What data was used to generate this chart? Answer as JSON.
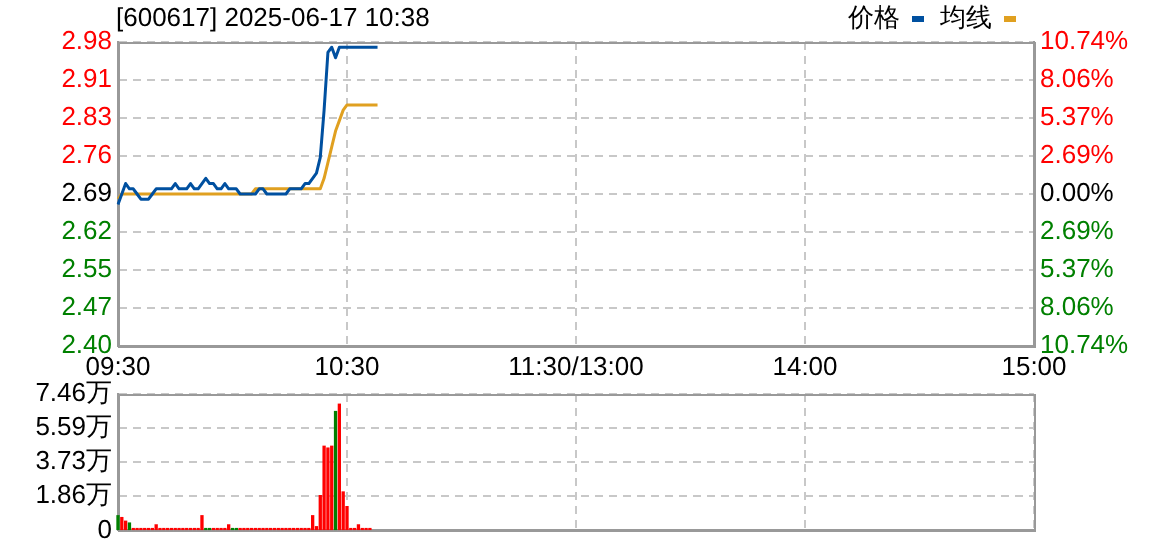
{
  "chart_data": [
    {
      "type": "line",
      "title": "[600617] 2025-06-17 10:38",
      "legend": "top right",
      "grid": true,
      "categories": [
        "09:30",
        null,
        null,
        null,
        null,
        null,
        null,
        null,
        null,
        null,
        null,
        null,
        null,
        null,
        null,
        null,
        null,
        null,
        null,
        null,
        null,
        null,
        null,
        null,
        null,
        null,
        null,
        null,
        null,
        null,
        null,
        null,
        null,
        null,
        null,
        null,
        null,
        null,
        null,
        null,
        null,
        null,
        null,
        null,
        null,
        null,
        null,
        null,
        null,
        null,
        null,
        null,
        null,
        null,
        null,
        null,
        null,
        null,
        null,
        null,
        "10:30",
        null,
        null,
        null,
        null,
        null,
        null,
        null,
        null,
        null,
        null,
        null,
        null,
        null,
        null,
        null,
        null,
        null,
        null,
        null,
        null,
        null,
        null,
        null,
        null,
        null,
        null,
        null,
        null,
        null,
        null,
        null,
        null,
        null,
        null,
        null,
        null,
        null,
        null,
        null,
        null,
        null,
        null,
        null,
        null,
        null,
        null,
        null,
        null,
        null,
        null,
        null,
        null,
        null,
        null,
        null,
        null,
        null,
        null,
        null,
        "11:30/13:00",
        null,
        null,
        null,
        null,
        null,
        null,
        null,
        null,
        null,
        null,
        null,
        null,
        null,
        null,
        null,
        null,
        null,
        null,
        null,
        null,
        null,
        null,
        null,
        null,
        null,
        null,
        null,
        null,
        null,
        null,
        null,
        null,
        null,
        null,
        null,
        null,
        null,
        null,
        null,
        null,
        null,
        null,
        null,
        null,
        null,
        null,
        null,
        null,
        null,
        null,
        null,
        null,
        null,
        null,
        null,
        null,
        null,
        null,
        null,
        "14:00",
        null,
        null,
        null,
        null,
        null,
        null,
        null,
        null,
        null,
        null,
        null,
        null,
        null,
        null,
        null,
        null,
        null,
        null,
        null,
        null,
        null,
        null,
        null,
        null,
        null,
        null,
        null,
        null,
        null,
        null,
        null,
        null,
        null,
        null,
        null,
        null,
        null,
        null,
        null,
        null,
        null,
        null,
        null,
        null,
        null,
        null,
        null,
        null,
        null,
        null,
        null,
        null,
        null,
        null,
        null,
        null,
        null,
        null,
        null,
        "15:00"
      ],
      "ylim": [
        2.4,
        2.98
      ],
      "yticks": [
        {
          "value": 2.4,
          "label": "2.40"
        },
        {
          "value": 2.4725,
          "label": "2.47"
        },
        {
          "value": 2.545,
          "label": "2.55"
        },
        {
          "value": 2.6175,
          "label": "2.62"
        },
        {
          "value": 2.69,
          "label": "2.69"
        },
        {
          "value": 2.7625,
          "label": "2.76"
        },
        {
          "value": 2.835,
          "label": "2.83"
        },
        {
          "value": 2.9075,
          "label": "2.91"
        },
        {
          "value": 2.98,
          "label": "2.98"
        }
      ],
      "y2lim": [
        -10.74,
        10.74
      ],
      "y2ticks": [
        {
          "value": -10.74,
          "label": "10.74%"
        },
        {
          "value": -8.06,
          "label": "8.06%"
        },
        {
          "value": -5.37,
          "label": "5.37%"
        },
        {
          "value": -2.69,
          "label": "2.69%"
        },
        {
          "value": 0,
          "label": "0.00%"
        },
        {
          "value": 2.69,
          "label": "2.69%"
        },
        {
          "value": 5.37,
          "label": "5.37%"
        },
        {
          "value": 8.06,
          "label": "8.06%"
        },
        {
          "value": 10.74,
          "label": "10.74%"
        }
      ],
      "series": [
        {
          "name": "价格",
          "color": "#0050a0",
          "values": [
            2.67,
            2.69,
            2.71,
            2.7,
            2.7,
            2.69,
            2.68,
            2.68,
            2.68,
            2.69,
            2.7,
            2.7,
            2.7,
            2.7,
            2.7,
            2.71,
            2.7,
            2.7,
            2.7,
            2.71,
            2.7,
            2.7,
            2.71,
            2.72,
            2.71,
            2.71,
            2.7,
            2.7,
            2.71,
            2.7,
            2.7,
            2.7,
            2.69,
            2.69,
            2.69,
            2.69,
            2.69,
            2.7,
            2.7,
            2.69,
            2.69,
            2.69,
            2.69,
            2.69,
            2.69,
            2.7,
            2.7,
            2.7,
            2.7,
            2.71,
            2.71,
            2.72,
            2.73,
            2.76,
            2.85,
            2.96,
            2.97,
            2.95,
            2.97,
            2.97,
            2.97,
            2.97,
            2.97,
            2.97,
            2.97,
            2.97,
            2.97,
            2.97,
            2.97,
            null,
            null,
            null,
            null,
            null,
            null,
            null,
            null,
            null,
            null,
            null,
            null,
            null,
            null,
            null,
            null,
            null,
            null,
            null,
            null,
            null,
            null,
            null,
            null,
            null,
            null,
            null,
            null,
            null,
            null,
            null,
            null,
            null,
            null,
            null,
            null,
            null,
            null,
            null,
            null,
            null,
            null,
            null,
            null,
            null,
            null,
            null,
            null,
            null,
            null,
            null,
            null,
            null,
            null,
            null,
            null,
            null,
            null,
            null,
            null,
            null,
            null,
            null,
            null,
            null,
            null,
            null,
            null,
            null,
            null,
            null,
            null,
            null,
            null,
            null,
            null,
            null,
            null,
            null,
            null,
            null,
            null,
            null,
            null,
            null,
            null,
            null,
            null,
            null,
            null,
            null,
            null,
            null,
            null,
            null,
            null,
            null,
            null,
            null,
            null,
            null,
            null,
            null,
            null,
            null,
            null,
            null,
            null,
            null,
            null,
            null,
            null,
            null,
            null,
            null,
            null,
            null,
            null,
            null,
            null,
            null,
            null,
            null,
            null,
            null,
            null,
            null,
            null,
            null,
            null,
            null,
            null,
            null,
            null,
            null,
            null,
            null,
            null,
            null,
            null,
            null,
            null,
            null,
            null,
            null,
            null,
            null,
            null,
            null,
            null,
            null,
            null,
            null,
            null,
            null,
            null,
            null,
            null,
            null,
            null,
            null,
            null,
            null,
            null,
            null,
            null,
            null,
            null,
            null,
            null,
            null,
            null
          ]
        },
        {
          "name": "均线",
          "color": "#e0a020",
          "values": [
            2.68,
            2.69,
            2.69,
            2.69,
            2.69,
            2.69,
            2.69,
            2.69,
            2.69,
            2.69,
            2.69,
            2.69,
            2.69,
            2.69,
            2.69,
            2.69,
            2.69,
            2.69,
            2.69,
            2.69,
            2.69,
            2.69,
            2.69,
            2.69,
            2.69,
            2.69,
            2.69,
            2.69,
            2.69,
            2.69,
            2.69,
            2.69,
            2.69,
            2.69,
            2.69,
            2.69,
            2.7,
            2.7,
            2.7,
            2.7,
            2.7,
            2.7,
            2.7,
            2.7,
            2.7,
            2.7,
            2.7,
            2.7,
            2.7,
            2.7,
            2.7,
            2.7,
            2.7,
            2.7,
            2.72,
            2.75,
            2.78,
            2.81,
            2.83,
            2.85,
            2.86,
            2.86,
            2.86,
            2.86,
            2.86,
            2.86,
            2.86,
            2.86,
            2.86,
            null,
            null,
            null,
            null,
            null,
            null,
            null,
            null,
            null,
            null,
            null,
            null,
            null,
            null,
            null,
            null,
            null,
            null,
            null,
            null,
            null,
            null,
            null,
            null,
            null,
            null,
            null,
            null,
            null,
            null,
            null,
            null,
            null,
            null,
            null,
            null,
            null,
            null,
            null,
            null,
            null,
            null,
            null,
            null,
            null,
            null,
            null,
            null,
            null,
            null,
            null,
            null,
            null,
            null,
            null,
            null,
            null,
            null,
            null,
            null,
            null,
            null,
            null,
            null,
            null,
            null,
            null,
            null,
            null,
            null,
            null,
            null,
            null,
            null,
            null,
            null,
            null,
            null,
            null,
            null,
            null,
            null,
            null,
            null,
            null,
            null,
            null,
            null,
            null,
            null,
            null,
            null,
            null,
            null,
            null,
            null,
            null,
            null,
            null,
            null,
            null,
            null,
            null,
            null,
            null,
            null,
            null,
            null,
            null,
            null,
            null,
            null,
            null,
            null,
            null,
            null,
            null,
            null,
            null,
            null,
            null,
            null,
            null,
            null,
            null,
            null,
            null,
            null,
            null,
            null,
            null,
            null,
            null,
            null,
            null,
            null,
            null,
            null,
            null,
            null,
            null,
            null,
            null,
            null,
            null,
            null,
            null,
            null,
            null,
            null,
            null,
            null,
            null,
            null,
            null,
            null,
            null,
            null,
            null,
            null,
            null,
            null,
            null,
            null,
            null,
            null,
            null,
            null,
            null,
            null,
            null,
            null
          ]
        }
      ]
    },
    {
      "type": "bar",
      "grid": true,
      "tick_labels": "y",
      "categories": [
        null,
        null,
        null,
        null,
        null,
        null,
        null,
        null,
        null,
        null,
        null,
        null,
        null,
        null,
        null,
        null,
        null,
        null,
        null,
        null,
        null,
        null,
        null,
        null,
        null,
        null,
        null,
        null,
        null,
        null,
        null,
        null,
        null,
        null,
        null,
        null,
        null,
        null,
        null,
        null,
        null,
        null,
        null,
        null,
        null,
        null,
        null,
        null,
        null,
        null,
        null,
        null,
        null,
        null,
        null,
        null,
        null,
        null,
        null,
        null,
        null,
        null,
        null,
        null,
        null,
        null,
        null,
        null,
        null,
        null,
        null,
        null,
        null,
        null,
        null,
        null,
        null,
        null,
        null,
        null,
        null,
        null,
        null,
        null,
        null,
        null,
        null,
        null,
        null,
        null,
        null,
        null,
        null,
        null,
        null,
        null,
        null,
        null,
        null,
        null,
        null,
        null,
        null,
        null,
        null,
        null,
        null,
        null,
        null,
        null,
        null,
        null,
        null,
        null,
        null,
        null,
        null,
        null,
        null,
        null,
        null,
        null,
        null,
        null,
        null,
        null,
        null,
        null,
        null,
        null,
        null,
        null,
        null,
        null,
        null,
        null,
        null,
        null,
        null,
        null,
        null,
        null,
        null,
        null,
        null,
        null,
        null,
        null,
        null,
        null,
        null,
        null,
        null,
        null,
        null,
        null,
        null,
        null,
        null,
        null,
        null,
        null,
        null,
        null,
        null,
        null,
        null,
        null,
        null,
        null,
        null,
        null,
        null,
        null,
        null,
        null,
        null,
        null,
        null,
        null,
        null,
        null,
        null,
        null,
        null,
        null,
        null,
        null,
        null,
        null,
        null,
        null,
        null,
        null,
        null,
        null,
        null,
        null,
        null,
        null,
        null,
        null,
        null,
        null,
        null,
        null,
        null,
        null,
        null,
        null,
        null,
        null,
        null,
        null,
        null,
        null,
        null,
        null,
        null,
        null,
        null,
        null,
        null,
        null,
        null,
        null,
        null,
        null,
        null,
        null,
        null,
        null,
        null,
        null,
        null,
        null,
        null,
        null,
        null,
        null,
        null
      ],
      "ylim": [
        0,
        7.46
      ],
      "yticks": [
        0,
        {
          "value": 1.865,
          "label": "1.86万"
        },
        {
          "value": 3.73,
          "label": "3.73万"
        },
        {
          "value": 5.595,
          "label": "5.59万"
        },
        {
          "value": 7.46,
          "label": "7.46万"
        }
      ],
      "values": [
        0.8,
        0.7,
        0.5,
        0.4,
        0.1,
        0.1,
        0.1,
        0.1,
        0.1,
        0.1,
        0.3,
        0.1,
        0.1,
        0.1,
        0.1,
        0.1,
        0.1,
        0.1,
        0.1,
        0.1,
        0.1,
        0.1,
        0.8,
        0.1,
        0.1,
        0.1,
        0.1,
        0.1,
        0.1,
        0.3,
        0.1,
        0.1,
        0.1,
        0.1,
        0.1,
        0.1,
        0.1,
        0.1,
        0.1,
        0.1,
        0.1,
        0.1,
        0.1,
        0.1,
        0.1,
        0.1,
        0.1,
        0.1,
        0.1,
        0.1,
        0.1,
        0.8,
        0.2,
        1.9,
        4.6,
        4.5,
        4.6,
        6.5,
        6.9,
        2.1,
        1.3,
        0.1,
        0.1,
        0.3,
        0.1,
        0.1,
        0.1,
        null,
        null,
        null,
        null,
        null,
        null,
        null,
        null,
        null,
        null,
        null,
        null,
        null,
        null,
        null,
        null,
        null,
        null,
        null,
        null,
        null,
        null,
        null,
        null,
        null,
        null,
        null,
        null,
        null,
        null,
        null,
        null,
        null,
        null,
        null,
        null,
        null,
        null,
        null,
        null,
        null,
        null,
        null,
        null,
        null,
        null,
        null,
        null,
        null,
        null,
        null,
        null,
        null,
        null,
        null,
        null,
        null,
        null,
        null,
        null,
        null,
        null,
        null,
        null,
        null,
        null,
        null,
        null,
        null,
        null,
        null,
        null,
        null,
        null,
        null,
        null,
        null,
        null,
        null,
        null,
        null,
        null,
        null,
        null,
        null,
        null,
        null,
        null,
        null,
        null,
        null,
        null,
        null,
        null,
        null,
        null,
        null,
        null,
        null,
        null,
        null,
        null,
        null,
        null,
        null,
        null,
        null,
        null,
        null,
        null,
        null,
        null,
        null,
        null,
        null,
        null,
        null,
        null,
        null,
        null,
        null,
        null,
        null,
        null,
        null,
        null,
        null,
        null,
        null,
        null,
        null,
        null,
        null,
        null,
        null,
        null,
        null,
        null,
        null,
        null,
        null,
        null,
        null,
        null,
        null,
        null,
        null,
        null,
        null,
        null,
        null,
        null,
        null,
        null,
        null,
        null,
        null,
        null,
        null,
        null,
        null,
        null,
        null,
        null,
        null,
        null,
        null,
        null,
        null,
        null,
        null,
        null,
        null,
        null
      ],
      "colors": [
        "#008000",
        "#ff0000",
        "#ff0000",
        "#008000",
        "#ff0000",
        "#ff0000",
        "#ff0000",
        "#ff0000",
        "#ff0000",
        "#ff0000",
        "#ff0000",
        "#ff0000",
        "#ff0000",
        "#ff0000",
        "#ff0000",
        "#ff0000",
        "#ff0000",
        "#ff0000",
        "#ff0000",
        "#ff0000",
        "#ff0000",
        "#ff0000",
        "#ff0000",
        "#008000",
        "#008000",
        "#ff0000",
        "#ff0000",
        "#ff0000",
        "#ff0000",
        "#ff0000",
        "#008000",
        "#008000",
        "#ff0000",
        "#ff0000",
        "#ff0000",
        "#ff0000",
        "#ff0000",
        "#ff0000",
        "#ff0000",
        "#ff0000",
        "#ff0000",
        "#ff0000",
        "#ff0000",
        "#ff0000",
        "#ff0000",
        "#ff0000",
        "#ff0000",
        "#ff0000",
        "#ff0000",
        "#ff0000",
        "#ff0000",
        "#ff0000",
        "#ff0000",
        "#ff0000",
        "#ff0000",
        "#ff0000",
        "#ff0000",
        "#008000",
        "#ff0000",
        "#ff0000",
        "#ff0000",
        "#ff0000",
        "#ff0000",
        "#ff0000",
        "#ff0000",
        "#ff0000",
        "#ff0000",
        null,
        null,
        null,
        null,
        null,
        null,
        null,
        null,
        null,
        null,
        null,
        null,
        null,
        null,
        null,
        null,
        null,
        null,
        null,
        null,
        null,
        null,
        null,
        null,
        null,
        null,
        null,
        null,
        null,
        null,
        null,
        null,
        null,
        null,
        null,
        null,
        null,
        null,
        null,
        null,
        null,
        null,
        null,
        null,
        null,
        null,
        null,
        null,
        null,
        null,
        null,
        null,
        null,
        null,
        null,
        null,
        null,
        null,
        null,
        null,
        null,
        null,
        null,
        null,
        null,
        null,
        null,
        null,
        null,
        null,
        null,
        null,
        null,
        null,
        null,
        null,
        null,
        null,
        null,
        null,
        null,
        null,
        null,
        null,
        null,
        null,
        null,
        null,
        null,
        null,
        null,
        null,
        null,
        null,
        null,
        null,
        null,
        null,
        null,
        null,
        null,
        null,
        null,
        null,
        null,
        null,
        null,
        null,
        null,
        null,
        null,
        null,
        null,
        null,
        null,
        null,
        null,
        null,
        null,
        null,
        null,
        null,
        null,
        null,
        null,
        null,
        null,
        null,
        null,
        null,
        null,
        null,
        null,
        null,
        null,
        null,
        null,
        null,
        null,
        null,
        null,
        null,
        null,
        null,
        null,
        null,
        null,
        null,
        null,
        null,
        null,
        null,
        null,
        null,
        null,
        null,
        null,
        null,
        null,
        null,
        null,
        null,
        null,
        null,
        null,
        null,
        null,
        null,
        null,
        null,
        null,
        null,
        null,
        null
      ]
    }
  ]
}
